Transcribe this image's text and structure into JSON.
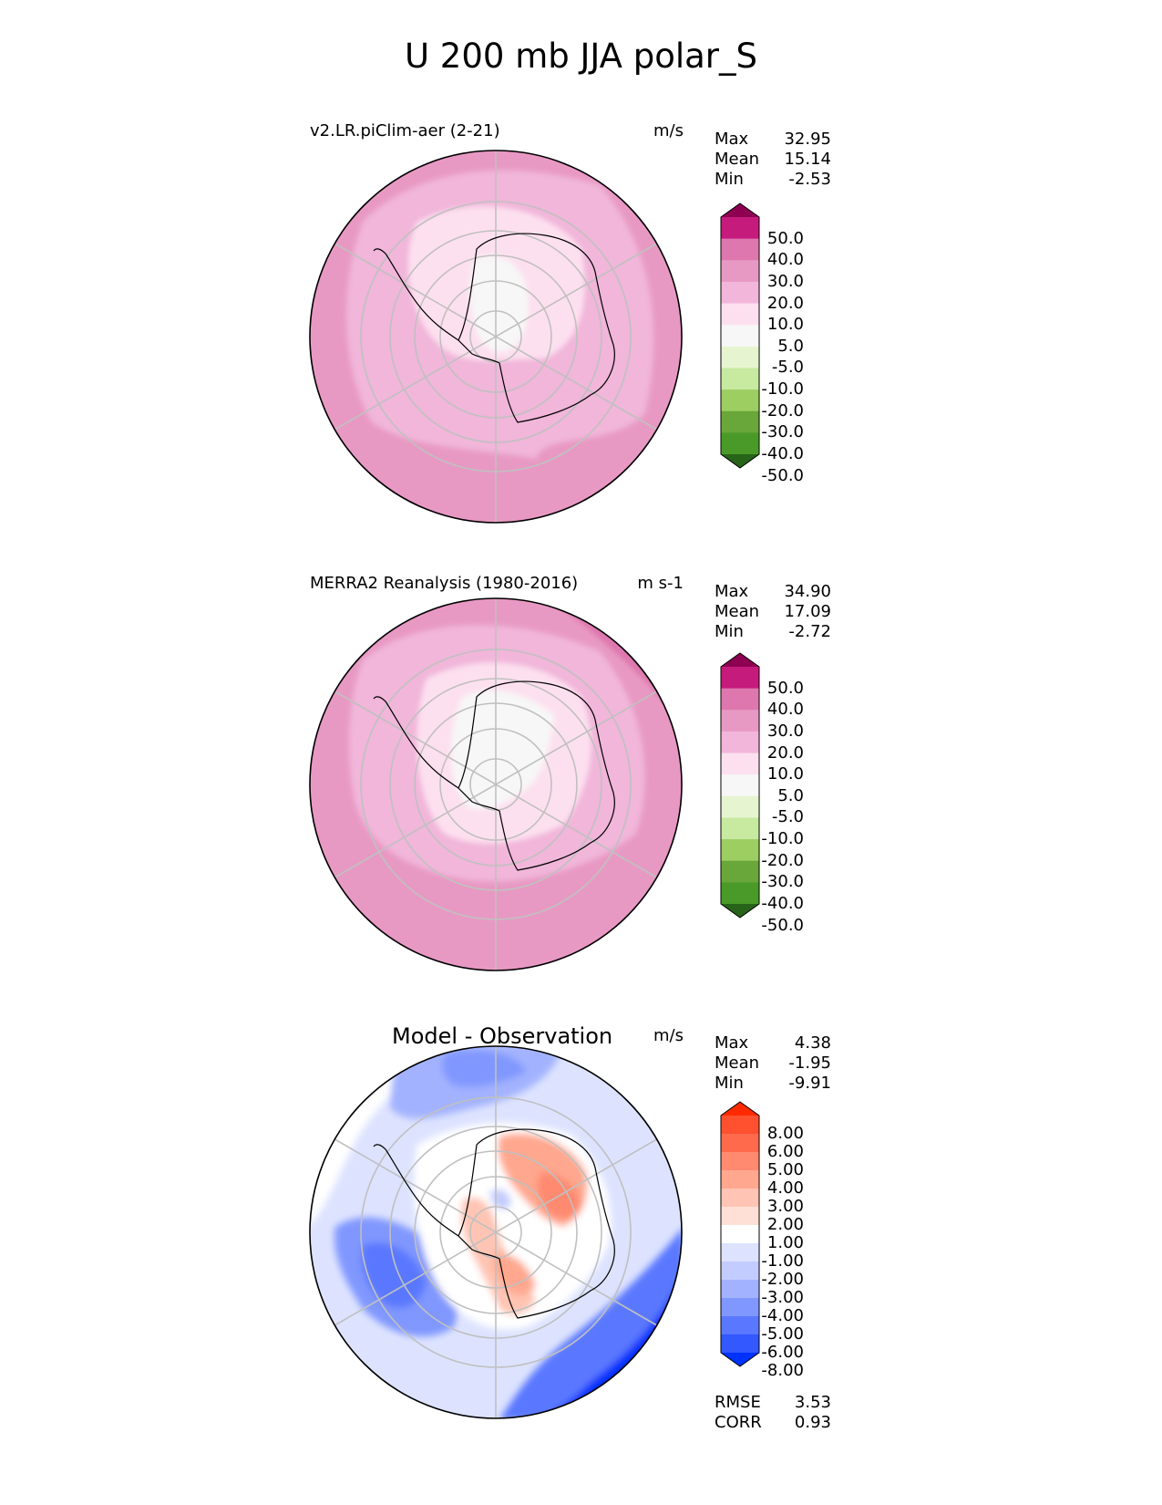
{
  "title": "U 200 mb JJA polar_S",
  "panels": [
    {
      "title": "v2.LR.piClim-aer (2-21)",
      "units": "m/s",
      "stats": [
        {
          "label": "Max",
          "value": "32.95"
        },
        {
          "label": "Mean",
          "value": "15.14"
        },
        {
          "label": "Min",
          "value": "-2.53"
        }
      ]
    },
    {
      "title": "MERRA2 Reanalysis (1980-2016)",
      "units": "m s-1",
      "stats": [
        {
          "label": "Max",
          "value": "34.90"
        },
        {
          "label": "Mean",
          "value": "17.09"
        },
        {
          "label": "Min",
          "value": "-2.72"
        }
      ]
    },
    {
      "title": "Model - Observation",
      "units": "m/s",
      "stats": [
        {
          "label": "Max",
          "value": "4.38"
        },
        {
          "label": "Mean",
          "value": "-1.95"
        },
        {
          "label": "Min",
          "value": "-9.91"
        }
      ],
      "extra_stats": [
        {
          "label": "RMSE",
          "value": "3.53"
        },
        {
          "label": "CORR",
          "value": "0.93"
        }
      ]
    }
  ],
  "colorbar_main": {
    "labels": [
      "50.0",
      "40.0",
      "30.0",
      "20.0",
      "10.0",
      "5.0",
      "-5.0",
      "-10.0",
      "-20.0",
      "-30.0",
      "-40.0",
      "-50.0"
    ],
    "colors": [
      "#8e0152",
      "#c51b7d",
      "#de77ae",
      "#e899c3",
      "#f1b6da",
      "#fde0ef",
      "#f7f7f7",
      "#e6f5d0",
      "#c7e9a0",
      "#9cce62",
      "#6aa73a",
      "#4a9a2a",
      "#276419"
    ]
  },
  "colorbar_diff": {
    "labels": [
      "8.00",
      "6.00",
      "5.00",
      "4.00",
      "3.00",
      "2.00",
      "1.00",
      "-1.00",
      "-2.00",
      "-3.00",
      "-4.00",
      "-5.00",
      "-6.00",
      "-8.00"
    ],
    "colors": [
      "#ff2a00",
      "#ff5030",
      "#ff6a4d",
      "#ff8a70",
      "#ffa88f",
      "#ffc4b3",
      "#ffe0d6",
      "#ffffff",
      "#dde3ff",
      "#c3ccff",
      "#a3b2ff",
      "#8097ff",
      "#5a78ff",
      "#3358ff",
      "#0032ff"
    ]
  },
  "chart_data": [
    {
      "type": "heatmap",
      "projection": "south-polar stereographic",
      "title": "v2.LR.piClim-aer (2-21)",
      "units": "m/s",
      "field_summary": {
        "max": 32.95,
        "mean": 15.14,
        "min": -2.53
      },
      "colorbar_levels": [
        -50,
        -40,
        -30,
        -20,
        -10,
        -5,
        5,
        10,
        20,
        30,
        40,
        50
      ]
    },
    {
      "type": "heatmap",
      "projection": "south-polar stereographic",
      "title": "MERRA2 Reanalysis (1980-2016)",
      "units": "m s-1",
      "field_summary": {
        "max": 34.9,
        "mean": 17.09,
        "min": -2.72
      },
      "colorbar_levels": [
        -50,
        -40,
        -30,
        -20,
        -10,
        -5,
        5,
        10,
        20,
        30,
        40,
        50
      ]
    },
    {
      "type": "heatmap",
      "projection": "south-polar stereographic",
      "title": "Model - Observation",
      "units": "m/s",
      "field_summary": {
        "max": 4.38,
        "mean": -1.95,
        "min": -9.91,
        "rmse": 3.53,
        "corr": 0.93
      },
      "colorbar_levels": [
        -8,
        -6,
        -5,
        -4,
        -3,
        -2,
        -1,
        1,
        2,
        3,
        4,
        5,
        6,
        8
      ]
    }
  ]
}
